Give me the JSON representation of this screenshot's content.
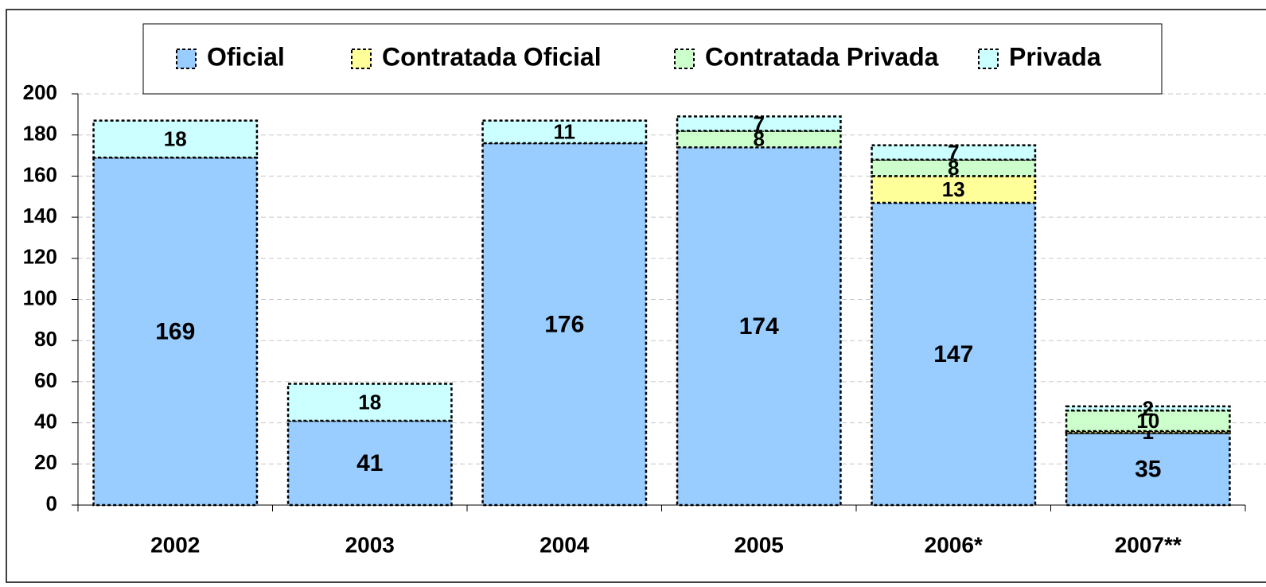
{
  "chart_data": {
    "type": "bar",
    "stacked": true,
    "categories": [
      "2002",
      "2003",
      "2004",
      "2005",
      "2006*",
      "2007**"
    ],
    "series": [
      {
        "name": "Oficial",
        "color": "#99ccff",
        "values": [
          169,
          41,
          176,
          174,
          147,
          35
        ]
      },
      {
        "name": "Contratada Oficial",
        "color": "#ffff99",
        "values": [
          null,
          null,
          null,
          null,
          13,
          1
        ]
      },
      {
        "name": "Contratada Privada",
        "color": "#ccffcc",
        "values": [
          null,
          null,
          null,
          8,
          8,
          10
        ]
      },
      {
        "name": "Privada",
        "color": "#ccffff",
        "values": [
          18,
          18,
          11,
          7,
          7,
          2
        ]
      }
    ],
    "ylim": [
      0,
      200
    ],
    "yticks": [
      0,
      20,
      40,
      60,
      80,
      100,
      120,
      140,
      160,
      180,
      200
    ],
    "grid": true,
    "legend": "top"
  }
}
